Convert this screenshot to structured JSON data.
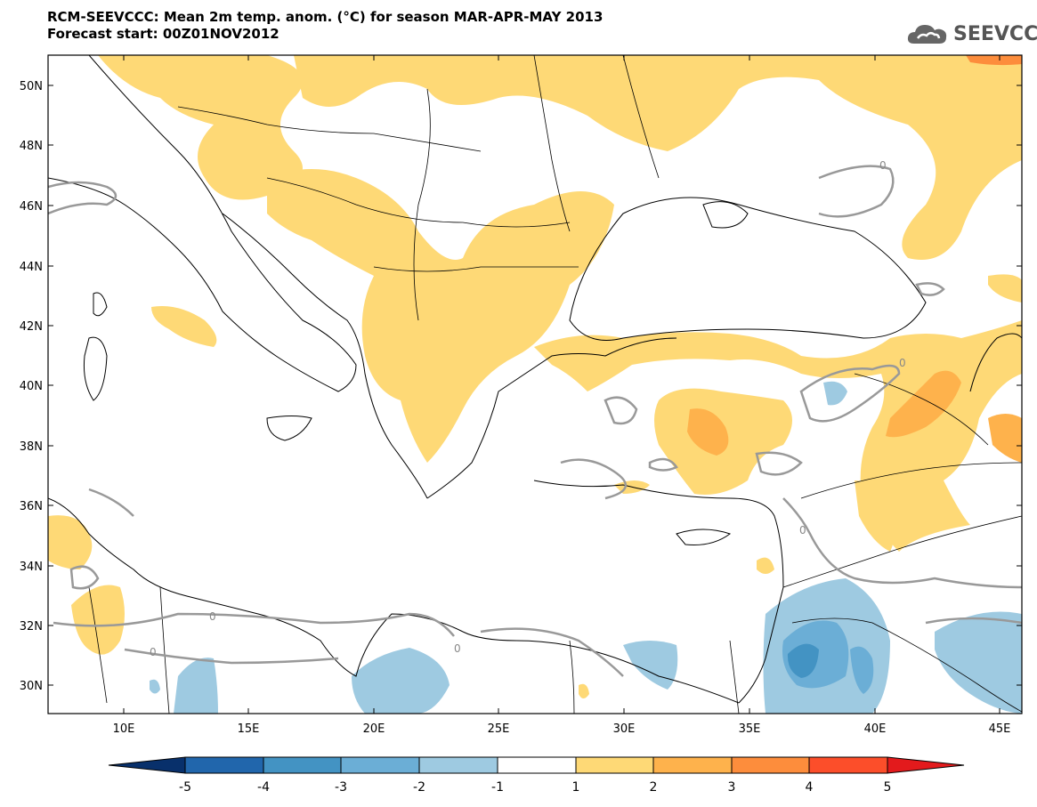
{
  "title": {
    "line1": "RCM-SEEVCCC: Mean 2m temp. anom. (°C) for season MAR-APR-MAY 2013",
    "line2": "Forecast start: 00Z01NOV2012"
  },
  "logo": {
    "text": "SEEVCCC",
    "icon": "cloud-icon"
  },
  "map": {
    "lat_labels": [
      "50N",
      "48N",
      "46N",
      "44N",
      "42N",
      "40N",
      "38N",
      "36N",
      "34N",
      "32N",
      "30N"
    ],
    "lon_labels": [
      "10E",
      "15E",
      "20E",
      "25E",
      "30E",
      "35E",
      "40E",
      "45E"
    ],
    "contour_label": "0"
  },
  "colorbar": {
    "ticks": [
      "-5",
      "-4",
      "-3",
      "-2",
      "-1",
      "1",
      "2",
      "3",
      "4",
      "5"
    ],
    "colors": [
      "#08306b",
      "#2166ac",
      "#4393c3",
      "#6baed6",
      "#9ecae1",
      "#ffffff",
      "#fed976",
      "#feb24c",
      "#fd8d3c",
      "#fc4e2a",
      "#e31a1c"
    ]
  }
}
